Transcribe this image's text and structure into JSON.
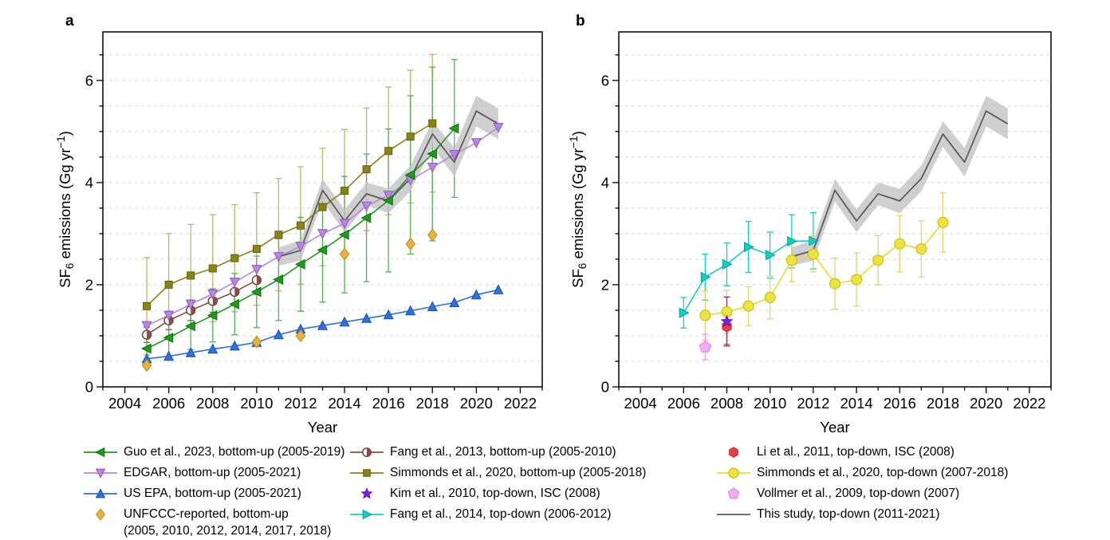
{
  "figure": {
    "panels": [
      {
        "key": "a",
        "label": "a"
      },
      {
        "key": "b",
        "label": "b"
      }
    ],
    "axes": {
      "x_label": "Year",
      "y_label_parts": {
        "pre": "SF",
        "sub": "6",
        "mid": " emissions (Gg yr",
        "sup": "−1",
        "post": ")"
      },
      "x_tick_labels": [
        "2004",
        "2006",
        "2008",
        "2010",
        "2012",
        "2014",
        "2016",
        "2018",
        "2020",
        "2022"
      ],
      "y_tick_labels": [
        "0",
        "2",
        "4",
        "6"
      ]
    },
    "colors": {
      "grid": "#d8d8d8",
      "axis": "#000000",
      "band": "#c3c3c3",
      "this_study_line": "#5c5c5c"
    }
  },
  "chart_data": [
    {
      "panel": "a",
      "type": "line",
      "title": "",
      "xlabel": "Year",
      "ylabel": "SF6 emissions (Gg yr-1)",
      "xlim": [
        2003,
        2023
      ],
      "ylim": [
        0,
        6.95
      ],
      "x_ticks": [
        2004,
        2006,
        2008,
        2010,
        2012,
        2014,
        2016,
        2018,
        2020,
        2022
      ],
      "y_ticks": [
        0,
        2,
        4,
        6
      ],
      "grid": "horizontal dashed every 0.5",
      "legend_position": "below figure",
      "series": [
        {
          "key": "simmonds_bu",
          "label": "Simmonds et al., 2020, bottom-up (2005-2018)",
          "marker": "square",
          "line": true,
          "color": "#8a8415",
          "marker_fill": "#8a8415",
          "marker_edge": "#5f5c0b",
          "err_color": "#bdb569",
          "marker_size": 5.5,
          "years": [
            2005,
            2006,
            2007,
            2008,
            2009,
            2010,
            2011,
            2012,
            2013,
            2014,
            2015,
            2016,
            2017,
            2018
          ],
          "values": [
            1.58,
            2.0,
            2.18,
            2.32,
            2.52,
            2.7,
            2.98,
            3.16,
            3.52,
            3.84,
            4.26,
            4.62,
            4.9,
            5.16
          ],
          "err": [
            0.95,
            1.0,
            1.0,
            1.05,
            1.05,
            1.1,
            1.1,
            1.15,
            1.15,
            1.2,
            1.2,
            1.25,
            1.3,
            1.35
          ]
        },
        {
          "key": "fang2013",
          "label": "Fang et al., 2013, bottom-up (2005-2010)",
          "marker": "circle-half",
          "line": true,
          "color": "#8b4d45",
          "marker_fill": "#8b4d45",
          "marker_edge": "#6e3a34",
          "err_color": "#8b4d45",
          "marker_size": 5.5,
          "years": [
            2005,
            2006,
            2007,
            2008,
            2009,
            2010
          ],
          "values": [
            1.02,
            1.3,
            1.5,
            1.68,
            1.86,
            2.09
          ],
          "err": [
            0.15,
            0.18,
            0.2,
            0.22,
            0.25,
            0.28
          ]
        },
        {
          "key": "edgar",
          "label": "EDGAR, bottom-up (2005-2021)",
          "marker": "triangle-down",
          "line": true,
          "color": "#b886e0",
          "marker_fill": "#b886e0",
          "marker_edge": "#8d59bd",
          "marker_size": 6,
          "years": [
            2005,
            2006,
            2007,
            2008,
            2009,
            2010,
            2011,
            2012,
            2013,
            2014,
            2015,
            2016,
            2017,
            2018,
            2019,
            2020,
            2021
          ],
          "values": [
            1.2,
            1.4,
            1.62,
            1.82,
            2.05,
            2.3,
            2.55,
            2.75,
            3.0,
            3.2,
            3.54,
            3.75,
            4.05,
            4.3,
            4.55,
            4.78,
            5.08
          ]
        },
        {
          "key": "guo",
          "label": "Guo et al., 2023, bottom-up (2005-2019)",
          "marker": "triangle-left",
          "line": true,
          "color": "#1e9c1a",
          "marker_fill": "#1e9c1a",
          "marker_edge": "#0b6e10",
          "err_color": "#54b054",
          "marker_size": 6,
          "years": [
            2005,
            2006,
            2007,
            2008,
            2009,
            2010,
            2011,
            2012,
            2013,
            2014,
            2015,
            2016,
            2017,
            2018,
            2019
          ],
          "values": [
            0.75,
            0.96,
            1.19,
            1.4,
            1.62,
            1.86,
            2.1,
            2.4,
            2.68,
            2.98,
            3.31,
            3.65,
            4.15,
            4.56,
            5.06
          ],
          "err": [
            0.32,
            0.38,
            0.46,
            0.52,
            0.6,
            0.7,
            0.8,
            0.92,
            1.02,
            1.14,
            1.25,
            1.4,
            1.55,
            1.7,
            1.35
          ]
        },
        {
          "key": "epa",
          "label": "US EPA, bottom-up (2005-2021)",
          "marker": "triangle-up",
          "line": true,
          "color": "#2e70dc",
          "marker_fill": "#2e70dc",
          "marker_edge": "#1c4fae",
          "marker_size": 6,
          "years": [
            2005,
            2006,
            2007,
            2008,
            2009,
            2010,
            2011,
            2012,
            2013,
            2014,
            2015,
            2016,
            2017,
            2018,
            2019,
            2020,
            2021
          ],
          "values": [
            0.55,
            0.6,
            0.67,
            0.74,
            0.8,
            0.87,
            1.02,
            1.13,
            1.2,
            1.27,
            1.34,
            1.41,
            1.49,
            1.57,
            1.65,
            1.8,
            1.9
          ]
        },
        {
          "key": "this_study",
          "label": "This study, top-down (2011-2021)",
          "marker": "none",
          "line": true,
          "color": "#5c5c5c",
          "band_color": "#c3c3c3",
          "band_opacity": 0.8,
          "years": [
            2011,
            2012,
            2013,
            2014,
            2015,
            2016,
            2017,
            2018,
            2019,
            2020,
            2021
          ],
          "values": [
            2.55,
            2.67,
            3.85,
            3.25,
            3.78,
            3.64,
            4.08,
            4.95,
            4.4,
            5.4,
            5.15
          ],
          "band_err": [
            0.18,
            0.2,
            0.22,
            0.22,
            0.22,
            0.24,
            0.25,
            0.25,
            0.28,
            0.3,
            0.3
          ]
        },
        {
          "key": "unfccc",
          "label": "UNFCCC-reported, bottom-up (2005, 2010, 2012, 2014, 2017, 2018)",
          "marker": "diamond",
          "line": false,
          "color": "#e9b23e",
          "marker_fill": "#e9b23e",
          "marker_edge": "#bc8a1c",
          "marker_size": 7,
          "years": [
            2005,
            2010,
            2012,
            2014,
            2017,
            2018
          ],
          "values": [
            0.42,
            0.88,
            1.0,
            2.6,
            2.8,
            2.97
          ]
        }
      ]
    },
    {
      "panel": "b",
      "type": "line",
      "title": "",
      "xlabel": "Year",
      "ylabel": "SF6 emissions (Gg yr-1)",
      "xlim": [
        2003,
        2023
      ],
      "ylim": [
        0,
        6.95
      ],
      "x_ticks": [
        2004,
        2006,
        2008,
        2010,
        2012,
        2014,
        2016,
        2018,
        2020,
        2022
      ],
      "y_ticks": [
        0,
        2,
        4,
        6
      ],
      "grid": "horizontal dashed every 0.5",
      "legend_position": "below figure",
      "series": [
        {
          "key": "fang2014",
          "label": "Fang et al., 2014, top-down (2006-2012)",
          "marker": "triangle-right",
          "line": true,
          "color": "#14cfc6",
          "marker_fill": "#14cfc6",
          "marker_edge": "#00a19b",
          "err_color": "#14cfc6",
          "marker_size": 6,
          "years": [
            2006,
            2007,
            2008,
            2009,
            2010,
            2011,
            2012
          ],
          "values": [
            1.45,
            2.15,
            2.4,
            2.74,
            2.58,
            2.85,
            2.86
          ],
          "err": [
            0.3,
            0.45,
            0.42,
            0.5,
            0.45,
            0.52,
            0.55
          ]
        },
        {
          "key": "simmonds_td",
          "label": "Simmonds et al., 2020, top-down (2007-2018)",
          "marker": "circle",
          "line": true,
          "color": "#e6dc30",
          "marker_fill": "#ece33c",
          "marker_edge": "#c4b71b",
          "err_color": "#e0d666",
          "marker_size": 6.5,
          "years": [
            2007,
            2008,
            2009,
            2010,
            2011,
            2012,
            2013,
            2014,
            2015,
            2016,
            2017,
            2018
          ],
          "values": [
            1.4,
            1.47,
            1.58,
            1.75,
            2.48,
            2.6,
            2.02,
            2.1,
            2.48,
            2.8,
            2.7,
            3.22
          ],
          "err": [
            0.48,
            0.42,
            0.38,
            0.42,
            0.42,
            0.35,
            0.5,
            0.52,
            0.48,
            0.55,
            0.55,
            0.58
          ]
        },
        {
          "key": "vollmer",
          "label": "Vollmer et al., 2009, top-down (2007)",
          "marker": "pentagon",
          "line": false,
          "color": "#f3abf3",
          "marker_fill": "#f3abf3",
          "marker_edge": "#d786d9",
          "err_color": "#eb9fe8",
          "marker_size": 7.5,
          "years": [
            2007
          ],
          "values": [
            0.78
          ],
          "err": [
            0.25
          ]
        },
        {
          "key": "li",
          "label": "Li et al., 2011, top-down, ISC (2008)",
          "marker": "hexagon",
          "line": false,
          "color": "#ee3b43",
          "marker_fill": "#ee3b43",
          "marker_edge": "#d21f2e",
          "err_color": "#ee3b43",
          "marker_size": 6.5,
          "years": [
            2008
          ],
          "values": [
            1.18
          ],
          "err": [
            0.35
          ]
        },
        {
          "key": "kim",
          "label": "Kim et al., 2010, top-down, ISC (2008)",
          "marker": "star",
          "line": false,
          "color": "#7d1fe0",
          "marker_fill": "#7d1fe0",
          "marker_edge": "#6512c2",
          "err_color": "#7d1fe0",
          "marker_size": 7,
          "years": [
            2008
          ],
          "values": [
            1.28
          ],
          "err": [
            0.48
          ]
        },
        {
          "key": "this_study",
          "label": "This study, top-down (2011-2021)",
          "marker": "none",
          "line": true,
          "color": "#5c5c5c",
          "band_color": "#c3c3c3",
          "band_opacity": 0.8,
          "years": [
            2011,
            2012,
            2013,
            2014,
            2015,
            2016,
            2017,
            2018,
            2019,
            2020,
            2021
          ],
          "values": [
            2.55,
            2.67,
            3.85,
            3.25,
            3.78,
            3.64,
            4.08,
            4.95,
            4.4,
            5.4,
            5.15
          ],
          "band_err": [
            0.18,
            0.2,
            0.22,
            0.22,
            0.22,
            0.24,
            0.25,
            0.25,
            0.28,
            0.3,
            0.3
          ]
        }
      ]
    }
  ],
  "legend": {
    "columns": [
      [
        {
          "series_key": "guo",
          "icon": "line-marker",
          "label": "Guo et al., 2023, bottom-up (2005-2019)"
        },
        {
          "series_key": "edgar",
          "icon": "line-marker",
          "label": "EDGAR, bottom-up (2005-2021)"
        },
        {
          "series_key": "epa",
          "icon": "line-marker",
          "label": "US EPA, bottom-up (2005-2021)"
        },
        {
          "series_key": "unfccc",
          "icon": "marker",
          "label_lines": [
            "UNFCCC-reported, bottom-up",
            "(2005, 2010, 2012, 2014, 2017, 2018)"
          ]
        }
      ],
      [
        {
          "series_key": "fang2013",
          "icon": "line-marker",
          "label": "Fang et al., 2013, bottom-up (2005-2010)"
        },
        {
          "series_key": "simmonds_bu",
          "icon": "line-marker",
          "label": "Simmonds et al., 2020, bottom-up (2005-2018)"
        },
        {
          "series_key": "kim",
          "icon": "marker",
          "label": "Kim et al., 2010, top-down, ISC (2008)"
        },
        {
          "series_key": "fang2014",
          "icon": "line-marker",
          "label": "Fang et al., 2014, top-down (2006-2012)"
        }
      ],
      [
        {
          "series_key": "li",
          "icon": "marker",
          "label": "Li et al., 2011, top-down, ISC (2008)"
        },
        {
          "series_key": "simmonds_td",
          "icon": "line-marker",
          "label": "Simmonds et al., 2020, top-down (2007-2018)"
        },
        {
          "series_key": "vollmer",
          "icon": "marker",
          "label": "Vollmer et al., 2009, top-down (2007)"
        },
        {
          "series_key": "this_study",
          "icon": "line",
          "label": "This study, top-down (2011-2021)"
        }
      ]
    ]
  }
}
